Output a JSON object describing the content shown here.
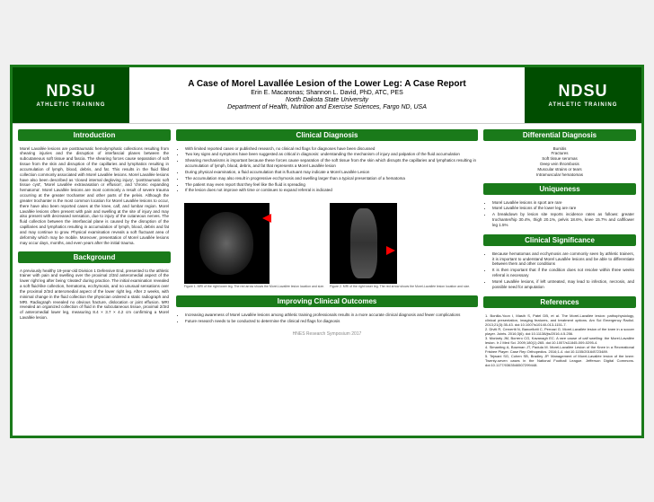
{
  "logo": {
    "name": "NDSU",
    "sub": "ATHLETIC TRAINING"
  },
  "title": {
    "main": "A Case of Morel Lavallée Lesion of the Lower Leg: A Case Report",
    "authors": "Erin E. Macaronas; Shannon L. David, PhD, ATC, PES",
    "inst": "North Dakota State University",
    "dept": "Department of Health, Nutrition and Exercise Sciences, Fargo ND, USA"
  },
  "sections": {
    "introduction": {
      "header": "Introduction",
      "text": "Morel Lavallée lesions are posttraumatic hemolymphatic collections resulting from shearing injuries and the disruption of interfascial planes between the subcutaneous soft tissue and fascia. The shearing forces cause separation of soft tissue from the skin and disruption of the capillaries and lymphatics resulting in accumulation of lymph, blood, debris, and fat. This results in the fluid filled collection commonly associated with Morel Lavallée lesions. Morel Lavallée lesions have also been described as 'closed internal degloving injury', 'posttraumatic soft tissue cyst', 'Morel Lavallée extravasation or effusion', and 'chronic expanding hematoma'. Morel Lavallée lesions are most commonly a result of severe trauma occurring at the greater trochanter and other parts of the pelvis. Although the greater trochanter is the most common location for Morel Lavallée lesions to occur, there have also been reported cases at the knee, calf, and lumbar region. Morel Lavallée lesions often present with pain and swelling at the site of injury and may also present with decreased sensation, due to injury of the cutaneous nerves. The fluid collection between the interfascial plane is caused by the disruption of the capillaries and lymphatics resulting in accumulation of lymph, blood, debris and fat and may continue to grow. Physical examination reveals a soft fluctuant area of deformity which may be mobile. Moreover, presentation of Morel Lavallée lesions may occur days, months, and even years after the initial trauma."
    },
    "background": {
      "header": "Background",
      "text": "A previously healthy 19-year-old Division 1 Defensive End, presented to the athletic trainer with pain and swelling over the proximal 2/3rd anteromedial aspect of the lower right leg after being 'cleated' during practice. The initial examination revealed a soft fluid-like collection, hematoma, ecchymosis, and no unusual sensations over the proximal 2/3rd anteromedial aspect of the lower right leg. After 2 weeks, with minimal change in the fluid collection the physician ordered a static radiograph and MRI. Radiograph revealed no obvious fracture, dislocation or joint effusion. MRI revealed an organized collection of fluid in the subcutaneous tissue, proximal 2/3rd of anteromedial lower leg, measuring 8.4 × 3.7 × 4.2 cm confirming a Morel Lavallée lesion."
    },
    "clinical_diagnosis": {
      "header": "Clinical Diagnosis",
      "items": [
        "With limited reported cases or published research, no clinical red flags for diagnoses have been discussed",
        "Two key signs and symptoms have been suggested as critical in diagnosis: understanding the mechanism of injury and palpation of the fluid accumulation",
        "Shearing mechanisms is important because these forces cause separation of the soft tissue from the skin which disrupts the capillaries and lymphatics resulting in accumulation of lymph, blood, debris, and fat that represents a Morel Lavallée lesion",
        "During physical examination, a fluid accumulation that is fluctuant may indicate a Morel Lavallée Lesion",
        "The accumulation may also result in progressive ecchymosis and swelling larger than a typical presentation of a hematoma",
        "The patient may even report that they feel like the fluid is spreading",
        "If the lesion does not improve with time or continues to expand referral is indicated"
      ]
    },
    "improving": {
      "header": "Improving Clinical Outcomes",
      "items": [
        "Increasing awareness of Morel Lavallée lesions among athletic training professionals results in a more accurate clinical diagnosis and fewer complications",
        "Future research needs to be conducted to determine the clinical red flags for diagnosis"
      ]
    },
    "differential": {
      "header": "Differential Diagnosis",
      "items": [
        "Bursitis",
        "Fractures",
        "Soft tissue seromas",
        "Deep vein thrombosis",
        "Muscular strains or tears",
        "Intramuscular hematomas"
      ]
    },
    "uniqueness": {
      "header": "Uniqueness",
      "items": [
        "Morel Lavallée lesions in sport are rare",
        "Morel Lavallée lesions of the lower leg are rare",
        "A breakdown by lesion site reports incidence rates as follows: greater trochanter/hip 30.4%, thigh 20.1%, pelvis 18.6%, knee 15.7% and calf/lower leg 1.5%"
      ]
    },
    "significance": {
      "header": "Clinical Significance",
      "items": [
        "Because hematomas and ecchymosis are commonly seen by athletic trainers, it is important to understand Morel Lavallée lesions and be able to differentiate between them and other conditions",
        "It is then important that if the condition does not resolve within three weeks referral is necessary",
        "Morel Lavallée lesions, if left untreated, may lead to infection, necrosis, and possible need for amputation"
      ]
    },
    "references": {
      "header": "References",
      "items": [
        "1. Bonilla-Yoon I, Masih S, Patel DB, et al. The Morel-Lavallée lesion: pathophysiology, clinical presentation, imaging features, and treatment options. Am Sci Emergency Radiol. 2013;21(3):35-43. doi:10.1007/s10140-013-1151-7.",
        "2. Diviti R, Cervertti N, Bancellotti C, Pernazi G. Morel-Lavallée lesion of the knee in a soccer player. Joints. 2016;3(6). doi:10.11138/jts/2016.4.5.256.",
        "3. Moriarty JM, Borrero CG, Kavanagh EC. A rare cause of calf swelling: the Morel-Lavallée lesion. Ir J Med Sci. 2009;180(1):265. doi:10.1007/s11845-009-0295-4.",
        "4. Simanting A, Bowman JT, Padula M. Morel-Lavallée Lesion of the Knee in a Recreational Frisbee Player. Case Rep Orthopedics. 2016;1-4. doi:10.1155/2016/8723489.",
        "5. Tejwani SG, Cohen SB, Bradley JP. Management of Morel-Lavallée lesion of the knee: Twenty-seven cases in the National Football League. Jefferson Digital Commons. doi:10.1177/0363546507299448."
      ]
    },
    "figures": {
      "f1": "Figure 1. MRI of the right lower leg. The red arrow shows the Morel-Lavallée lesion location and size.",
      "f2": "Figure 2. MRI of the right lower leg. The red arrow shows the Morel-Lavallée lesion location and size."
    },
    "footer": "HNES Research Symposium 2017"
  }
}
